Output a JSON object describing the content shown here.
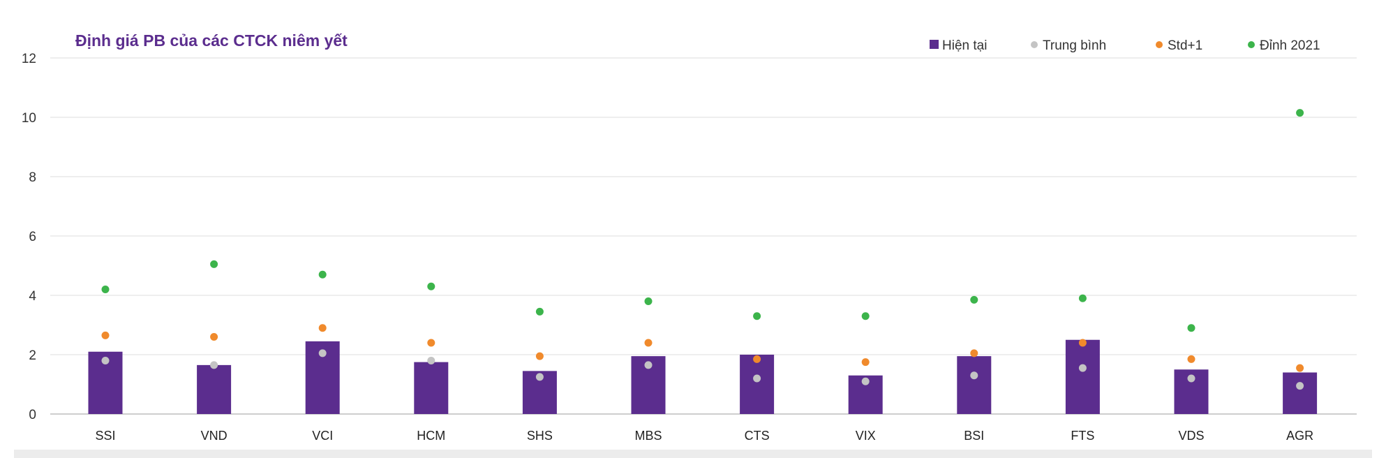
{
  "chart_data": {
    "type": "bar",
    "title": "Định giá PB của các CTCK niêm yết",
    "xlabel": "",
    "ylabel": "",
    "ylim": [
      0,
      12
    ],
    "yticks": [
      "0",
      "2",
      "4",
      "6",
      "8",
      "10",
      "12"
    ],
    "grid": true,
    "legend_position": "top-right",
    "categories": [
      "SSI",
      "VND",
      "VCI",
      "HCM",
      "SHS",
      "MBS",
      "CTS",
      "VIX",
      "BSI",
      "FTS",
      "VDS",
      "AGR"
    ],
    "series": [
      {
        "name": "Hiện tại",
        "kind": "bar",
        "color": "#5b2d8e",
        "values": [
          2.1,
          1.65,
          2.45,
          1.75,
          1.45,
          1.95,
          2.0,
          1.3,
          1.95,
          2.5,
          1.5,
          1.4
        ]
      },
      {
        "name": "Trung bình",
        "kind": "dot",
        "color": "#c4c4c4",
        "values": [
          1.8,
          1.65,
          2.05,
          1.8,
          1.25,
          1.65,
          1.2,
          1.1,
          1.3,
          1.55,
          1.2,
          0.95
        ]
      },
      {
        "name": "Std+1",
        "kind": "dot",
        "color": "#f08a2c",
        "values": [
          2.65,
          2.6,
          2.9,
          2.4,
          1.95,
          2.4,
          1.85,
          1.75,
          2.05,
          2.4,
          1.85,
          1.55
        ]
      },
      {
        "name": "Đỉnh 2021",
        "kind": "dot",
        "color": "#3cb44b",
        "values": [
          4.2,
          5.05,
          4.7,
          4.3,
          3.45,
          3.8,
          3.3,
          3.3,
          3.85,
          3.9,
          2.9,
          10.15
        ]
      }
    ]
  }
}
